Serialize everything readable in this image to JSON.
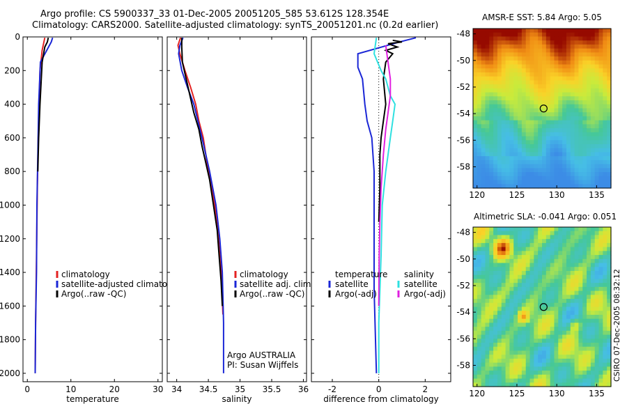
{
  "header": {
    "line1": "Argo profile: CS 5900337_33 01-Dec-2005 20051205_585 53.612S 128.354E",
    "line2": "Climatology: CARS2000. Satellite-adjusted climatology: synTS_20051201.nc (0.2d earlier)"
  },
  "credit": "CSIRO 07-Dec-2005 08:32:12",
  "colors": {
    "climatology": "#e32222",
    "satellite": "#1a26d6",
    "argo": "#000000",
    "satellite_diff": "#2ee0e0",
    "argo_adj": "#e020e0"
  },
  "chart_data": [
    {
      "type": "line",
      "xlabel": "temperature",
      "xlim": [
        -1,
        31
      ],
      "ylim": [
        2050,
        0
      ],
      "xticks": [
        0,
        10,
        20,
        30
      ],
      "yticks": [
        0,
        200,
        400,
        600,
        800,
        1000,
        1200,
        1400,
        1600,
        1800,
        2000
      ],
      "legend": {
        "placement": "lower-left",
        "entries": [
          "climatology",
          "satellite-adjusted climatology",
          "Argo(..raw -QC)"
        ]
      },
      "series": [
        {
          "name": "climatology",
          "color": "#e32222",
          "points": [
            [
              4.0,
              5
            ],
            [
              3.4,
              80
            ],
            [
              2.9,
              200
            ],
            [
              2.7,
              400
            ],
            [
              2.5,
              600
            ],
            [
              2.3,
              900
            ],
            [
              2.1,
              1300
            ],
            [
              1.9,
              1700
            ],
            [
              1.8,
              2000
            ]
          ]
        },
        {
          "name": "satellite-adjusted climatology",
          "color": "#1a26d6",
          "points": [
            [
              5.8,
              5
            ],
            [
              5.5,
              30
            ],
            [
              3.0,
              150
            ],
            [
              2.6,
              400
            ],
            [
              2.4,
              700
            ],
            [
              2.2,
              1000
            ],
            [
              2.1,
              1400
            ],
            [
              1.9,
              1700
            ],
            [
              1.8,
              2000
            ]
          ]
        },
        {
          "name": "Argo(..raw -QC)",
          "color": "#000000",
          "points": [
            [
              4.8,
              5
            ],
            [
              4.6,
              30
            ],
            [
              4.0,
              60
            ],
            [
              3.4,
              150
            ],
            [
              2.9,
              400
            ],
            [
              2.6,
              600
            ],
            [
              2.4,
              800
            ]
          ]
        }
      ]
    },
    {
      "type": "line",
      "xlabel": "salinity",
      "xlim": [
        33.85,
        36.05
      ],
      "ylim": [
        2050,
        0
      ],
      "xticks": [
        34,
        34.5,
        35,
        35.5,
        36
      ],
      "xticklabels": [
        "34",
        "34.5",
        "35",
        "35.5",
        "36"
      ],
      "legend": {
        "placement": "lower-right",
        "entries": [
          "climatology",
          "satellite adj. clim.",
          "Argo(..raw -QC)"
        ]
      },
      "annotations": [
        "Argo AUSTRALIA",
        "PI: Susan Wijffels"
      ],
      "series": [
        {
          "name": "climatology",
          "color": "#e32222",
          "points": [
            [
              34.06,
              5
            ],
            [
              34.02,
              50
            ],
            [
              34.05,
              100
            ],
            [
              34.13,
              200
            ],
            [
              34.22,
              300
            ],
            [
              34.3,
              400
            ],
            [
              34.35,
              500
            ],
            [
              34.42,
              600
            ],
            [
              34.5,
              800
            ],
            [
              34.6,
              1000
            ],
            [
              34.66,
              1200
            ],
            [
              34.7,
              1400
            ],
            [
              34.73,
              1650
            ]
          ]
        },
        {
          "name": "satellite adj. clim.",
          "color": "#1a26d6",
          "points": [
            [
              34.1,
              5
            ],
            [
              34.05,
              50
            ],
            [
              34.03,
              100
            ],
            [
              34.08,
              200
            ],
            [
              34.17,
              300
            ],
            [
              34.27,
              400
            ],
            [
              34.4,
              600
            ],
            [
              34.52,
              800
            ],
            [
              34.62,
              1000
            ],
            [
              34.68,
              1200
            ],
            [
              34.72,
              1400
            ],
            [
              34.74,
              1700
            ],
            [
              34.74,
              2000
            ]
          ]
        },
        {
          "name": "Argo(..raw -QC)",
          "color": "#000000",
          "points": [
            [
              34.08,
              5
            ],
            [
              34.08,
              60
            ],
            [
              34.09,
              150
            ],
            [
              34.18,
              300
            ],
            [
              34.27,
              450
            ],
            [
              34.35,
              550
            ],
            [
              34.4,
              650
            ],
            [
              34.46,
              750
            ],
            [
              34.52,
              850
            ],
            [
              34.58,
              1000
            ],
            [
              34.64,
              1150
            ],
            [
              34.67,
              1300
            ],
            [
              34.7,
              1450
            ],
            [
              34.72,
              1600
            ]
          ]
        }
      ]
    },
    {
      "type": "line",
      "xlabel": "difference from climatology",
      "xlim": [
        -2.9,
        3.1
      ],
      "ylim": [
        2050,
        0
      ],
      "xticks": [
        -2,
        0,
        2
      ],
      "legend": {
        "placement": "lower",
        "groups": [
          {
            "title": "temperature",
            "entries": [
              "satellite",
              "Argo(-adj)"
            ]
          },
          {
            "title": "salinity",
            "entries": [
              "satellite",
              "Argo(-adj)"
            ]
          }
        ]
      },
      "series": [
        {
          "name": "satellite",
          "group": "temperature",
          "color": "#1a26d6",
          "points": [
            [
              1.6,
              5
            ],
            [
              0.9,
              30
            ],
            [
              -0.9,
              100
            ],
            [
              -0.9,
              180
            ],
            [
              -0.7,
              250
            ],
            [
              -0.6,
              400
            ],
            [
              -0.5,
              500
            ],
            [
              -0.3,
              600
            ],
            [
              -0.2,
              800
            ],
            [
              -0.2,
              1100
            ],
            [
              -0.2,
              1500
            ],
            [
              -0.1,
              2000
            ]
          ]
        },
        {
          "name": "Argo(-adj)",
          "group": "temperature",
          "color": "#000000",
          "points": [
            [
              0.6,
              20
            ],
            [
              1.0,
              30
            ],
            [
              0.4,
              40
            ],
            [
              0.8,
              60
            ],
            [
              0.3,
              80
            ],
            [
              0.6,
              100
            ],
            [
              0.3,
              150
            ],
            [
              0.2,
              250
            ],
            [
              0.3,
              400
            ],
            [
              0.2,
              500
            ],
            [
              0.1,
              600
            ],
            [
              0.05,
              700
            ],
            [
              0.05,
              900
            ],
            [
              0.0,
              1100
            ]
          ]
        },
        {
          "name": "satellite",
          "group": "salinity",
          "color": "#2ee0e0",
          "points": [
            [
              -0.1,
              5
            ],
            [
              -0.2,
              100
            ],
            [
              0.1,
              200
            ],
            [
              0.3,
              250
            ],
            [
              0.4,
              300
            ],
            [
              0.5,
              350
            ],
            [
              0.7,
              400
            ],
            [
              0.6,
              500
            ],
            [
              0.5,
              600
            ],
            [
              0.4,
              700
            ],
            [
              0.3,
              800
            ],
            [
              0.15,
              1000
            ],
            [
              0.1,
              1300
            ],
            [
              0.0,
              1700
            ],
            [
              0.0,
              2000
            ]
          ]
        },
        {
          "name": "Argo(-adj)",
          "group": "salinity",
          "color": "#e020e0",
          "points": [
            [
              0.3,
              50
            ],
            [
              0.4,
              150
            ],
            [
              0.5,
              250
            ],
            [
              0.5,
              350
            ],
            [
              0.4,
              450
            ],
            [
              0.3,
              550
            ],
            [
              0.2,
              700
            ],
            [
              0.1,
              900
            ],
            [
              0.05,
              1100
            ],
            [
              0.02,
              1300
            ],
            [
              0.0,
              1600
            ]
          ]
        }
      ]
    },
    {
      "type": "heatmap",
      "title": "AMSR-E SST: 5.84  Argo: 5.05",
      "xlim": [
        119.5,
        136.8
      ],
      "ylim": [
        -59.6,
        -47.6
      ],
      "xticks": [
        120,
        125,
        130,
        135
      ],
      "yticks": [
        -48,
        -50,
        -52,
        -54,
        -56,
        -58
      ],
      "marker": {
        "lon": 128.354,
        "lat": -53.612
      }
    },
    {
      "type": "heatmap",
      "title": "Altimetric SLA: -0.041  Argo: 0.051",
      "xlim": [
        119.5,
        136.8
      ],
      "ylim": [
        -59.6,
        -47.6
      ],
      "xticks": [
        120,
        125,
        130,
        135
      ],
      "yticks": [
        -48,
        -50,
        -52,
        -54,
        -56,
        -58
      ],
      "marker": {
        "lon": 128.354,
        "lat": -53.612
      }
    }
  ]
}
